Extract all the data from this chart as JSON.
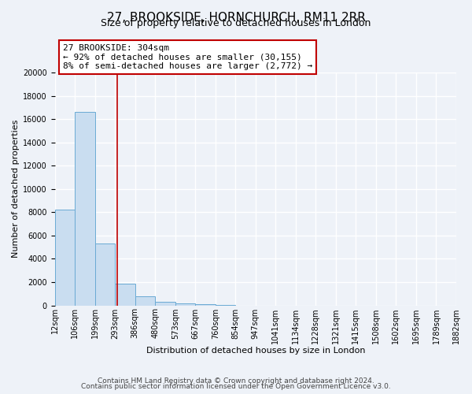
{
  "title": "27, BROOKSIDE, HORNCHURCH, RM11 2RR",
  "subtitle": "Size of property relative to detached houses in London",
  "xlabel": "Distribution of detached houses by size in London",
  "ylabel": "Number of detached properties",
  "bar_values": [
    8200,
    16600,
    5300,
    1850,
    800,
    300,
    150,
    100,
    50,
    0,
    0,
    0,
    0,
    0,
    0,
    0,
    0,
    0,
    0,
    0
  ],
  "bar_labels": [
    "12sqm",
    "106sqm",
    "199sqm",
    "293sqm",
    "386sqm",
    "480sqm",
    "573sqm",
    "667sqm",
    "760sqm",
    "854sqm",
    "947sqm",
    "1041sqm",
    "1134sqm",
    "1228sqm",
    "1321sqm",
    "1415sqm",
    "1508sqm",
    "1602sqm",
    "1695sqm",
    "1789sqm",
    "1882sqm"
  ],
  "bar_color": "#c9ddf0",
  "bar_edge_color": "#6aaad4",
  "ylim": [
    0,
    20000
  ],
  "yticks": [
    0,
    2000,
    4000,
    6000,
    8000,
    10000,
    12000,
    14000,
    16000,
    18000,
    20000
  ],
  "marker_color": "#c00000",
  "annotation_title": "27 BROOKSIDE: 304sqm",
  "annotation_line1": "← 92% of detached houses are smaller (30,155)",
  "annotation_line2": "8% of semi-detached houses are larger (2,772) →",
  "annotation_box_edge": "#c00000",
  "footer_line1": "Contains HM Land Registry data © Crown copyright and database right 2024.",
  "footer_line2": "Contains public sector information licensed under the Open Government Licence v3.0.",
  "bg_color": "#eef2f8",
  "plot_bg_color": "#eef2f8",
  "grid_color": "#ffffff",
  "title_fontsize": 11,
  "subtitle_fontsize": 9,
  "axis_label_fontsize": 8,
  "tick_fontsize": 7,
  "annotation_fontsize": 8,
  "footer_fontsize": 6.5
}
